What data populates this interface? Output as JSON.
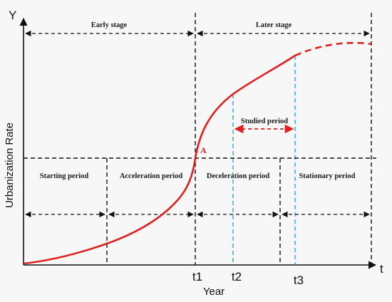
{
  "axes": {
    "y_letter": "Y",
    "x_letter": "t",
    "y_title": "Urbanization Rate",
    "x_title": "Year"
  },
  "stages": {
    "early": "Early stage",
    "later": "Later stage"
  },
  "periods": {
    "starting": "Starting period",
    "acceleration": "Acceleration period",
    "deceleration": "Deceleration period",
    "stationary": "Stationary period"
  },
  "studied_period": "Studied period",
  "point_label": "A",
  "ticks": {
    "t1": "t1",
    "t2": "t2",
    "t3": "t3"
  },
  "colors": {
    "curve": "#e02020",
    "marker": "#29a8d6",
    "line": "#111111"
  }
}
